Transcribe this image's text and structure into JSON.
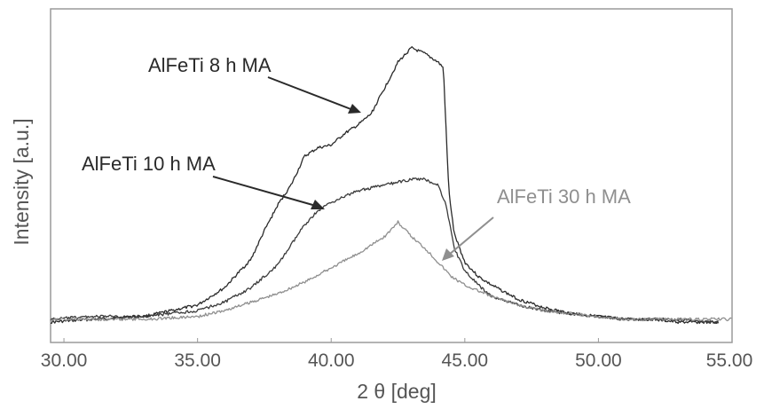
{
  "chart_data": {
    "type": "line",
    "title": "",
    "xlabel": "2 θ [deg]",
    "ylabel": "Intensity [a.u.]",
    "xlim": [
      29.5,
      55.0
    ],
    "ylim": [
      0,
      100
    ],
    "y_ticks_shown": false,
    "grid": false,
    "x_ticks": [
      "30.00",
      "35.00",
      "40.00",
      "45.00",
      "50.00",
      "55.00"
    ],
    "x_tick_values": [
      30,
      35,
      40,
      45,
      50,
      55
    ],
    "series": [
      {
        "name": "AlFeTi 8 h MA",
        "color": "#2a2a2a",
        "x": [
          29.5,
          31,
          33,
          35,
          36,
          37,
          37.5,
          38,
          38.5,
          39,
          39.5,
          40,
          40.5,
          41,
          41.5,
          42,
          42.5,
          43,
          43.5,
          44,
          44.2,
          44.4,
          44.6,
          45,
          45.5,
          46,
          47,
          48,
          49,
          50,
          51,
          52,
          53,
          54,
          54.5
        ],
        "y": [
          4,
          5,
          6,
          10,
          16,
          26,
          36,
          45,
          52,
          62,
          65,
          66,
          70,
          73,
          77,
          86,
          95,
          100,
          98,
          95,
          93,
          50,
          35,
          25,
          20,
          17,
          12,
          9,
          7,
          6,
          5,
          5,
          4,
          4,
          4
        ]
      },
      {
        "name": "AlFeTi 10 h MA",
        "color": "#3a3a3a",
        "x": [
          29.5,
          31,
          33,
          35,
          36,
          37,
          38,
          38.5,
          39,
          39.5,
          40,
          40.5,
          41,
          41.5,
          42,
          42.5,
          43,
          43.5,
          44,
          44.3,
          44.6,
          45,
          45.5,
          46,
          47,
          48,
          49,
          50,
          51,
          52,
          53,
          54,
          54.5
        ],
        "y": [
          5,
          6,
          6,
          8,
          11,
          16,
          24,
          31,
          38,
          43,
          46,
          48,
          50,
          51,
          52,
          53,
          54,
          54,
          52,
          45,
          30,
          22,
          17,
          13,
          10,
          8,
          7,
          6,
          5,
          5,
          5,
          4,
          4
        ]
      },
      {
        "name": "AlFeTi 30 h MA",
        "color": "#8f8f8f",
        "x": [
          29.5,
          31,
          33,
          35,
          36,
          37,
          38,
          39,
          40,
          41,
          42,
          42.5,
          43,
          43.5,
          44,
          44.5,
          45,
          46,
          47,
          48,
          49,
          50,
          51,
          52,
          53,
          54,
          55
        ],
        "y": [
          5,
          5,
          5,
          6,
          8,
          11,
          14,
          18,
          23,
          28,
          34,
          39,
          34,
          30,
          25,
          20,
          17,
          13,
          10,
          8,
          7,
          6,
          5,
          5,
          5,
          5,
          5
        ]
      }
    ],
    "annotations": [
      {
        "text": "AlFeTi 8 h MA",
        "color": "#2a2a2a"
      },
      {
        "text": "AlFeTi 10 h MA",
        "color": "#2a2a2a"
      },
      {
        "text": "AlFeTi 30 h MA",
        "color": "#8f8f8f"
      }
    ]
  }
}
